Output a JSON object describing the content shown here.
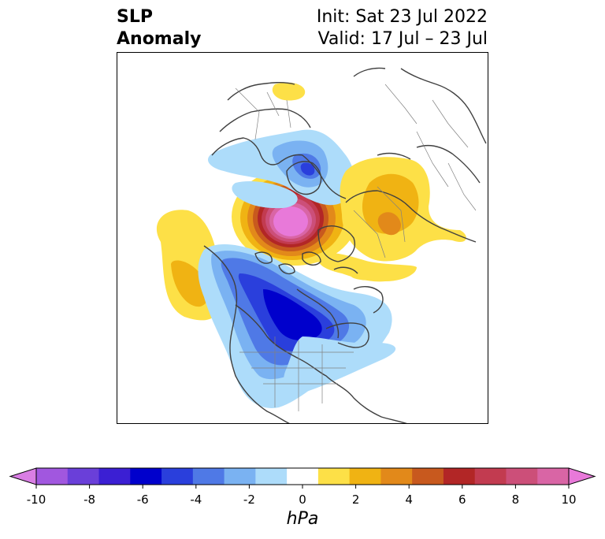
{
  "title": {
    "left_line1": "SLP",
    "left_line2": "Anomaly",
    "right_line1": "Init: Sat 23 Jul 2022",
    "right_line2": "Valid: 17 Jul – 23 Jul"
  },
  "map": {
    "projection": "north-polar stereographic",
    "field": "sea level pressure anomaly",
    "features": [
      {
        "kind": "positive-anomaly",
        "location": "Arctic Ocean north of Siberia",
        "peak_hPa": 10
      },
      {
        "kind": "negative-anomaly",
        "location": "central Canada / Hudson Bay",
        "peak_hPa": -6
      },
      {
        "kind": "negative-anomaly",
        "location": "Scandinavia / Barents region",
        "peak_hPa": -5
      },
      {
        "kind": "positive-anomaly",
        "location": "north-east Pacific",
        "peak_hPa": 3
      },
      {
        "kind": "positive-anomaly",
        "location": "western Russia / Europe",
        "peak_hPa": 4
      },
      {
        "kind": "positive-anomaly",
        "location": "central Asia",
        "peak_hPa": 2
      }
    ]
  },
  "colorbar": {
    "unit": "hPa",
    "ticks": [
      "-10",
      "-8",
      "-6",
      "-4",
      "-2",
      "0",
      "2",
      "4",
      "6",
      "8",
      "10"
    ],
    "colors": [
      "#d97ee4",
      "#a157df",
      "#6a3fd9",
      "#3b1fd3",
      "#0000cc",
      "#2a3fdc",
      "#4f79e6",
      "#7ab2f2",
      "#addcfa",
      "#ffffff",
      "#fde047",
      "#f0b313",
      "#e2891a",
      "#c8591e",
      "#b22626",
      "#c23b50",
      "#cc4f79",
      "#d965a5",
      "#e879d9"
    ],
    "extend_min_color": "#d97ee4",
    "extend_max_color": "#e879d9"
  }
}
